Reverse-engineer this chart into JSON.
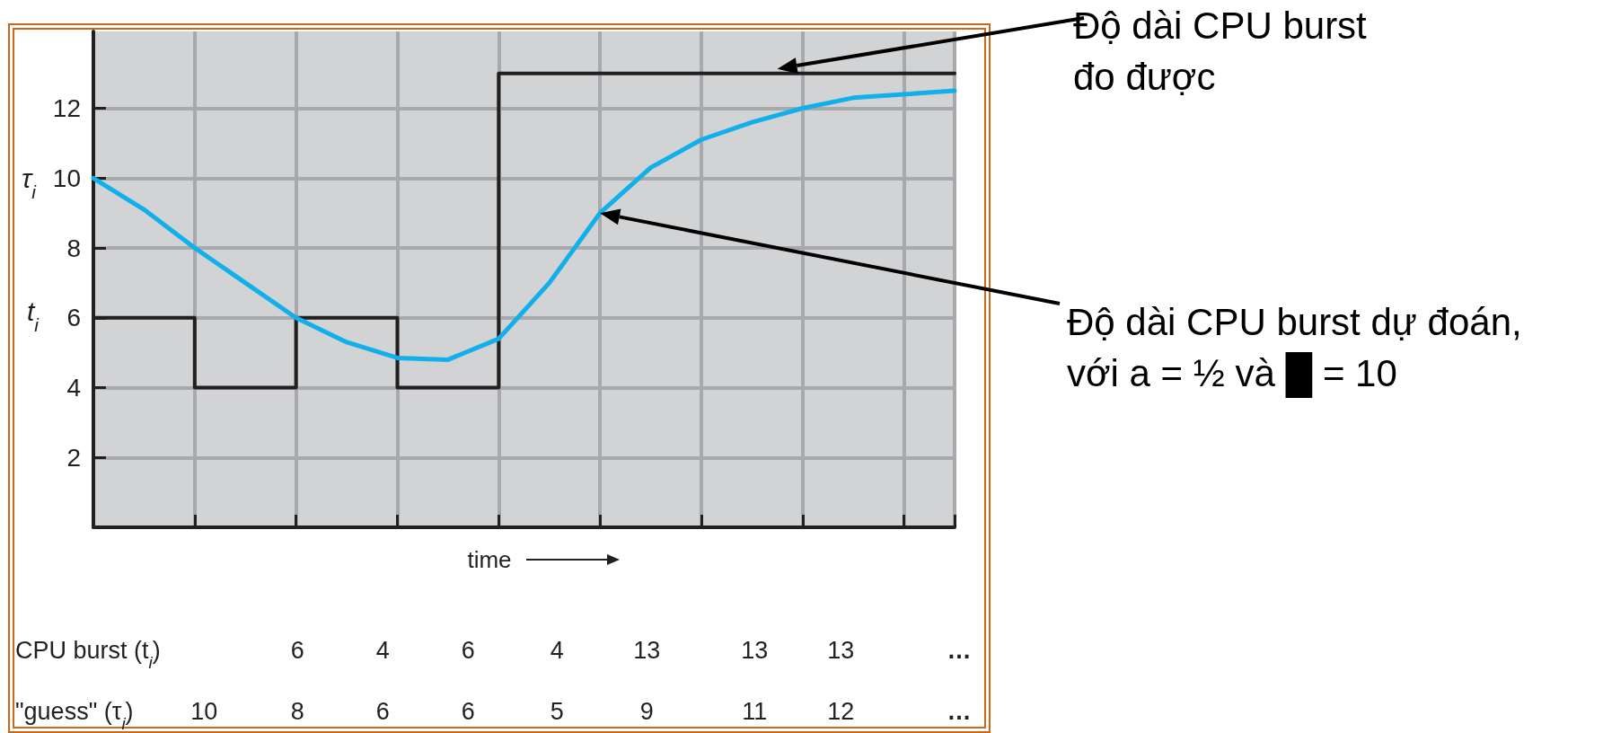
{
  "chart_data": {
    "type": "line",
    "xlabel": "time",
    "categories": [
      null,
      null,
      null,
      null,
      null,
      null,
      null,
      null,
      null,
      null,
      null,
      null,
      null,
      null,
      null,
      null,
      null,
      null
    ],
    "ylim": [
      0,
      14.2
    ],
    "yticks": [
      2,
      4,
      6,
      8,
      10,
      12
    ],
    "grid": true,
    "tick_labels": "y",
    "marker": "none",
    "line_style": "solid",
    "series": [
      {
        "color": "#12b0ea",
        "values": [
          10,
          9.1,
          8,
          7,
          6,
          5.3,
          4.85,
          4.8,
          5.4,
          7,
          9,
          10.3,
          11.1,
          11.6,
          12,
          12.3,
          12.4,
          12.5
        ]
      },
      {
        "type": "step",
        "color": "#231f20",
        "values": [
          6,
          6,
          4,
          4,
          6,
          6,
          4,
          4,
          13,
          13,
          13,
          13,
          13,
          13,
          13,
          13,
          13,
          13
        ]
      }
    ],
    "annotations": [
      "Độ dài CPU burst\nđo được",
      "Độ dài CPU burst dự đoán,\nvới a = ½ và █ = 10",
      "τ$_{i}$",
      "t$_{i}$",
      "CPU burst (t$_{i}$)",
      "6 4 6 4 13 13 13 …",
      "\"guess\" (τ$_{i}$)",
      "10 8 6 6 5 9 11 12 …"
    ]
  }
}
